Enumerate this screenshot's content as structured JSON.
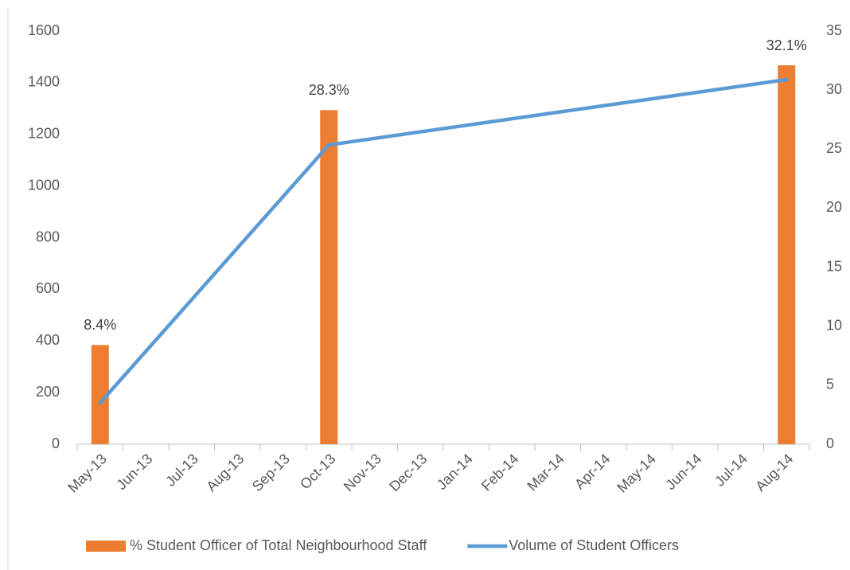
{
  "chart_data": {
    "type": "bar-line",
    "categories": [
      "May-13",
      "Jun-13",
      "Jul-13",
      "Aug-13",
      "Sep-13",
      "Oct-13",
      "Nov-13",
      "Dec-13",
      "Jan-14",
      "Feb-14",
      "Mar-14",
      "Apr-14",
      "May-14",
      "Jun-14",
      "Jul-14",
      "Aug-14"
    ],
    "series": [
      {
        "name": "% Student Officer of Total Neighbourhood Staff",
        "type": "bar",
        "axis": "y2",
        "color": "#ed7d31",
        "x": [
          "May-13",
          "Oct-13",
          "Aug-14"
        ],
        "values": [
          8.4,
          28.3,
          32.1
        ],
        "value_labels": [
          "8.4%",
          "28.3%",
          "32.1%"
        ]
      },
      {
        "name": "Volume of Student Officers",
        "type": "line",
        "axis": "y",
        "color": "#5b9bd5",
        "x": [
          "May-13",
          "Oct-13",
          "Aug-14"
        ],
        "values": [
          160,
          1159,
          1412
        ]
      }
    ],
    "ylim": [
      0,
      1600
    ],
    "yticks": [
      0,
      200,
      400,
      600,
      800,
      1000,
      1200,
      1400,
      1600
    ],
    "y2lim": [
      0,
      35
    ],
    "y2ticks": [
      0,
      5,
      10,
      15,
      20,
      25,
      30,
      35
    ],
    "legend": "bottom"
  }
}
